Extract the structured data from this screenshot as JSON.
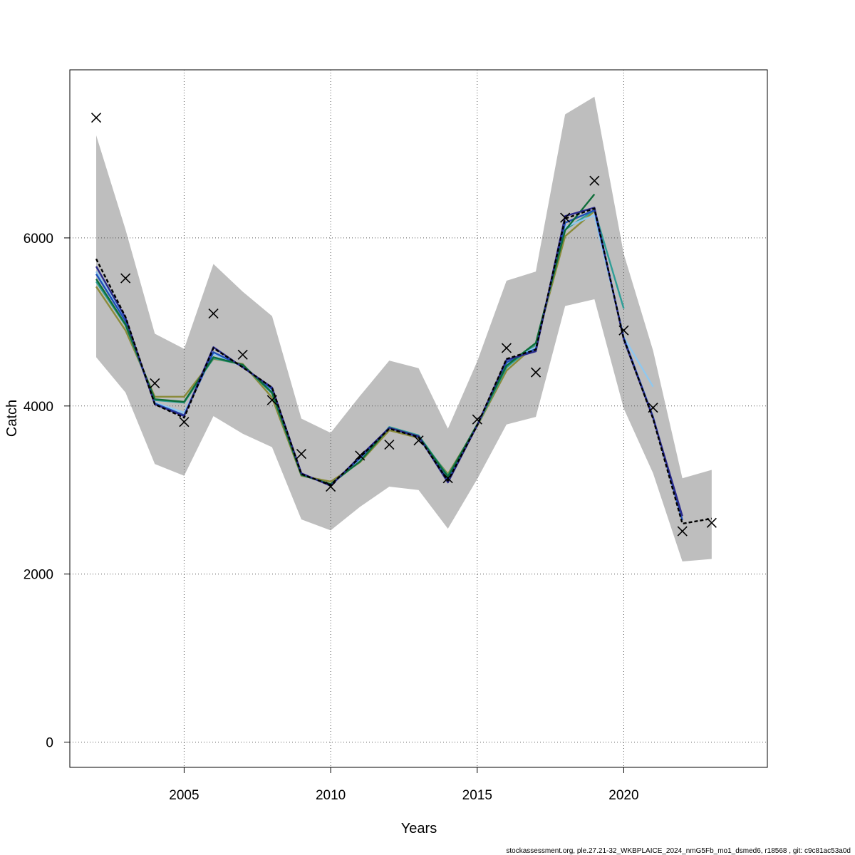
{
  "chart_data": {
    "type": "line",
    "title": "",
    "xlabel": "Years",
    "ylabel": "Catch",
    "xlim": [
      2001.1,
      2024.9
    ],
    "ylim": [
      -300,
      8000
    ],
    "xticks": [
      2005,
      2010,
      2015,
      2020
    ],
    "yticks": [
      0,
      2000,
      4000,
      6000
    ],
    "grid": true,
    "legend": "none",
    "confidence_band": {
      "x": [
        2002,
        2003,
        2004,
        2005,
        2006,
        2007,
        2008,
        2009,
        2010,
        2011,
        2012,
        2013,
        2014,
        2015,
        2016,
        2017,
        2018,
        2019,
        2020,
        2021,
        2022,
        2023
      ],
      "lower": [
        4580,
        4160,
        3310,
        3170,
        3880,
        3670,
        3510,
        2650,
        2520,
        2800,
        3040,
        3000,
        2540,
        3130,
        3780,
        3870,
        5190,
        5270,
        3970,
        3200,
        2150,
        2180
      ],
      "upper": [
        7220,
        6100,
        4860,
        4680,
        5690,
        5360,
        5070,
        3850,
        3680,
        4120,
        4540,
        4450,
        3730,
        4530,
        5490,
        5600,
        7470,
        7680,
        5810,
        4660,
        3140,
        3240
      ],
      "color": "#bebebe"
    },
    "observed": {
      "marker": "x",
      "x": [
        2002,
        2003,
        2004,
        2005,
        2006,
        2007,
        2008,
        2009,
        2010,
        2011,
        2012,
        2013,
        2014,
        2015,
        2016,
        2017,
        2018,
        2019,
        2020,
        2021,
        2022,
        2023
      ],
      "y": [
        7430,
        5520,
        4270,
        3810,
        5100,
        4610,
        4070,
        3430,
        3040,
        3410,
        3540,
        3590,
        3140,
        3840,
        4690,
        4400,
        6240,
        6680,
        4900,
        3980,
        2510,
        2610
      ]
    },
    "series": [
      {
        "color": "#000000",
        "dashed": true,
        "x": [
          2002,
          2003,
          2004,
          2005,
          2006,
          2007,
          2008,
          2009,
          2010,
          2011,
          2012,
          2013,
          2014,
          2015,
          2016,
          2017,
          2018,
          2019,
          2020,
          2021,
          2022,
          2023
        ],
        "y": [
          5750,
          5060,
          4020,
          3860,
          4690,
          4460,
          4220,
          3190,
          3060,
          3390,
          3730,
          3630,
          3110,
          3770,
          4560,
          4670,
          6230,
          6350,
          4800,
          3850,
          2600,
          2660
        ]
      },
      {
        "color": "#8b8b3a",
        "x": [
          2002,
          2003,
          2004,
          2005,
          2006,
          2007,
          2008,
          2009,
          2010,
          2011,
          2012,
          2013,
          2014,
          2015,
          2016,
          2017,
          2018,
          2019
        ],
        "y": [
          5420,
          4900,
          4110,
          4110,
          4560,
          4500,
          4100,
          3170,
          3100,
          3330,
          3710,
          3620,
          3190,
          3760,
          4420,
          4730,
          6020,
          6320
        ]
      },
      {
        "color": "#2e9e97",
        "x": [
          2002,
          2003,
          2004,
          2005,
          2006,
          2007,
          2008,
          2009,
          2010,
          2011,
          2012,
          2013,
          2014,
          2015,
          2016,
          2017,
          2018,
          2019,
          2020
        ],
        "y": [
          5480,
          4960,
          4070,
          4040,
          4570,
          4490,
          4150,
          3180,
          3070,
          3340,
          3750,
          3650,
          3170,
          3770,
          4460,
          4740,
          6100,
          6330,
          5160
        ]
      },
      {
        "color": "#8ec8f0",
        "x": [
          2002,
          2003,
          2004,
          2005,
          2006,
          2007,
          2008,
          2009,
          2010,
          2011,
          2012,
          2013,
          2014,
          2015,
          2016,
          2017,
          2018,
          2019,
          2020,
          2021
        ],
        "y": [
          5600,
          5020,
          4040,
          3920,
          4620,
          4470,
          4190,
          3190,
          3060,
          3370,
          3740,
          3640,
          3130,
          3770,
          4510,
          4700,
          6130,
          6270,
          4820,
          4230
        ]
      },
      {
        "color": "#1f4fb8",
        "x": [
          2002,
          2003,
          2004,
          2005,
          2006,
          2007,
          2008,
          2009,
          2010,
          2011,
          2012,
          2013,
          2014,
          2015,
          2016,
          2017,
          2018,
          2019,
          2020,
          2021,
          2022
        ],
        "y": [
          5570,
          5010,
          4030,
          3890,
          4640,
          4470,
          4200,
          3190,
          3060,
          3380,
          3740,
          3630,
          3120,
          3770,
          4520,
          4680,
          6180,
          6330,
          4810,
          3870,
          2640
        ]
      },
      {
        "color": "#0f6e3a",
        "x": [
          2002,
          2003,
          2004,
          2005,
          2006,
          2007,
          2008,
          2009,
          2010,
          2011,
          2012,
          2013,
          2014,
          2015,
          2016,
          2017,
          2018,
          2019
        ],
        "y": [
          5510,
          4970,
          4080,
          4050,
          4580,
          4490,
          4160,
          3180,
          3070,
          3340,
          3740,
          3640,
          3160,
          3780,
          4480,
          4750,
          6090,
          6520
        ]
      },
      {
        "color": "#2a2a8c",
        "x": [
          2002,
          2003,
          2004,
          2005,
          2006,
          2007,
          2008,
          2009,
          2010,
          2011,
          2012,
          2013,
          2014,
          2015,
          2016,
          2017,
          2018,
          2019,
          2020,
          2021,
          2022
        ],
        "y": [
          5660,
          5050,
          4020,
          3880,
          4700,
          4460,
          4220,
          3200,
          3050,
          3400,
          3740,
          3640,
          3090,
          3770,
          4550,
          4650,
          6260,
          6360,
          4790,
          3860,
          2690
        ]
      }
    ]
  },
  "footer": "stockassessment.org, ple.27.21-32_WKBPLAICE_2024_nmG5Fb_mo1_dsmed6, r18568 , git: c9c81ac53a0d"
}
